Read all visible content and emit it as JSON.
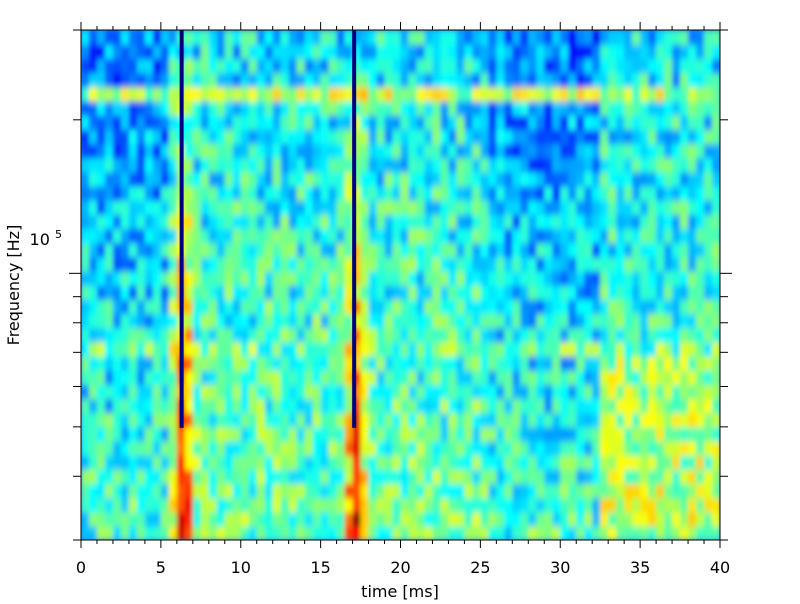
{
  "chart_data": {
    "type": "heatmap",
    "subtype": "spectrogram",
    "xlabel": "time [ms]",
    "ylabel": "Frequency [Hz]",
    "xlim": [
      0,
      40
    ],
    "x_ticks": [
      0,
      5,
      10,
      15,
      20,
      25,
      30,
      35,
      40
    ],
    "x_tick_labels": [
      "0",
      "5",
      "10",
      "15",
      "20",
      "25",
      "30",
      "35",
      "40"
    ],
    "y_scale": "log",
    "ylim": [
      30000,
      300000
    ],
    "y_major_tick": 100000,
    "y_major_tick_label_base": "10",
    "y_major_tick_label_exponent": "5",
    "y_minor_ticks": [
      30000,
      40000,
      50000,
      60000,
      70000,
      80000,
      90000,
      200000,
      300000
    ],
    "colormap": "jet",
    "value_range": [
      0,
      1
    ],
    "time_resolution_ms": 0.5,
    "frequency_bins": 36,
    "features": {
      "tonal_lines": [
        {
          "frequency_hz": 73000,
          "time_ms": [
            0,
            40
          ],
          "level": 0.62
        },
        {
          "frequency_hz": 225000,
          "time_ms": [
            0,
            40
          ],
          "level": 0.55
        },
        {
          "frequency_hz": 180000,
          "time_ms": [
            5.5,
            25.5
          ],
          "level": 0.54
        }
      ],
      "dark_vertical_lines_ms": [
        6.3,
        17.1
      ],
      "broadband_bursts_ms": [
        6.4,
        17.2
      ],
      "quieter_intervals_ms": [
        [
          0,
          5.5
        ],
        [
          25.5,
          32.5
        ]
      ]
    }
  }
}
